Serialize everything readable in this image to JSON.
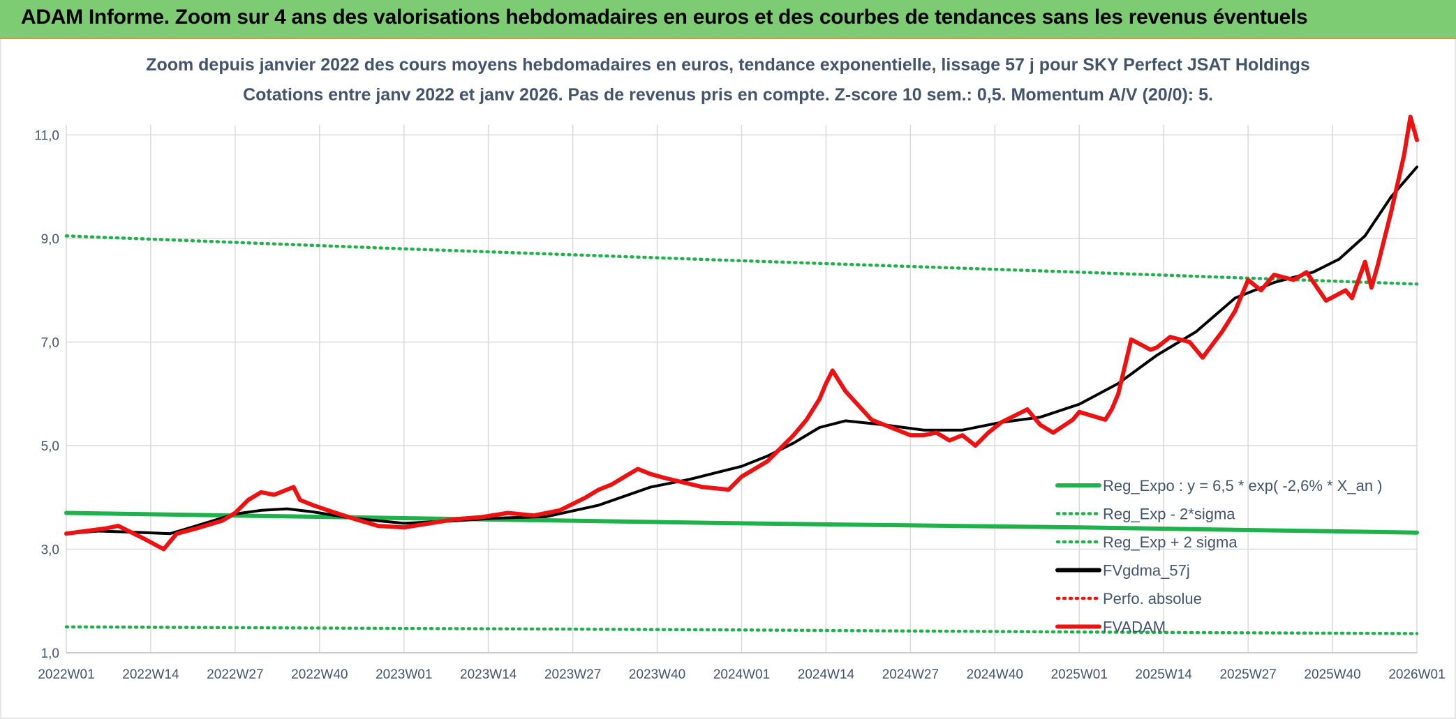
{
  "header": {
    "title": "ADAM Informe. Zoom sur 4 ans des valorisations hebdomadaires en euros et des courbes de tendances sans les revenus éventuels"
  },
  "colors": {
    "header_bg": "#7dcb72",
    "green": "#1fb14b",
    "black": "#000000",
    "red": "#ee1111",
    "grid": "#d9d9d9",
    "text": "#44546a"
  },
  "chart_data": {
    "type": "line",
    "title": "Zoom depuis janvier 2022 des cours moyens hebdomadaires en euros, tendance exponentielle, lissage 57 j pour SKY Perfect JSAT Holdings",
    "subtitle": "Cotations entre janv 2022 et janv 2026. Pas de revenus pris en compte. Z-score 10 sem.: 0,5. Momentum A/V (20/0): 5.",
    "ylim": [
      1.0,
      11.5
    ],
    "yticks": [
      "1,0",
      "3,0",
      "5,0",
      "7,0",
      "9,0",
      "11,0"
    ],
    "ytick_values": [
      1,
      3,
      5,
      7,
      9,
      11
    ],
    "xtick_labels": [
      "2022W01",
      "2022W14",
      "2022W27",
      "2022W40",
      "2023W01",
      "2023W14",
      "2023W27",
      "2023W40",
      "2024W01",
      "2024W14",
      "2024W27",
      "2024W40",
      "2025W01",
      "2025W14",
      "2025W27",
      "2025W40",
      "2026W01"
    ],
    "xtick_index": [
      0,
      13,
      26,
      39,
      52,
      65,
      78,
      91,
      104,
      117,
      130,
      143,
      156,
      169,
      182,
      195,
      208
    ],
    "x_max_index": 208,
    "legend": [
      "Reg_Expo : y = 6,5 * exp( -2,6% *  X_an )",
      "Reg_Exp - 2*sigma",
      "Reg_Exp + 2 sigma",
      "FVgdma_57j",
      "Perfo. absolue",
      "FVADAM"
    ],
    "series": [
      {
        "name": "Reg_Expo : y = 6,5 * exp( -2,6% *  X_an )",
        "style": "solid",
        "color": "#1fb14b",
        "x": [
          0,
          52,
          104,
          156,
          208
        ],
        "values": [
          3.7,
          3.6,
          3.5,
          3.42,
          3.32
        ]
      },
      {
        "name": "Reg_Exp - 2*sigma",
        "style": "dotted",
        "color": "#1fb14b",
        "x": [
          0,
          52,
          104,
          156,
          208
        ],
        "values": [
          1.5,
          1.47,
          1.44,
          1.4,
          1.37
        ]
      },
      {
        "name": "Reg_Exp + 2 sigma",
        "style": "dotted",
        "color": "#1fb14b",
        "x": [
          0,
          52,
          104,
          156,
          208
        ],
        "values": [
          9.05,
          8.8,
          8.57,
          8.35,
          8.12
        ]
      },
      {
        "name": "FVgdma_57j",
        "style": "solid",
        "color": "#000000",
        "x": [
          0,
          5,
          10,
          16,
          20,
          26,
          30,
          34,
          38,
          44,
          52,
          60,
          66,
          74,
          82,
          90,
          96,
          104,
          108,
          112,
          116,
          120,
          126,
          132,
          138,
          144,
          150,
          156,
          162,
          168,
          174,
          180,
          186,
          192,
          196,
          200,
          204,
          208
        ],
        "values": [
          3.3,
          3.35,
          3.33,
          3.3,
          3.45,
          3.68,
          3.75,
          3.78,
          3.72,
          3.6,
          3.5,
          3.55,
          3.6,
          3.63,
          3.85,
          4.2,
          4.35,
          4.6,
          4.8,
          5.05,
          5.35,
          5.48,
          5.4,
          5.3,
          5.3,
          5.45,
          5.55,
          5.8,
          6.2,
          6.75,
          7.2,
          7.85,
          8.15,
          8.35,
          8.6,
          9.05,
          9.8,
          10.38
        ]
      },
      {
        "name": "Perfo. absolue",
        "style": "dotted",
        "color": "#ee1111",
        "x": [],
        "values": []
      },
      {
        "name": "FVADAM",
        "style": "solid",
        "color": "#ee1111",
        "x": [
          0,
          3,
          6,
          8,
          12,
          15,
          17,
          20,
          24,
          26,
          28,
          30,
          32,
          35,
          36,
          38,
          41,
          44,
          48,
          52,
          56,
          60,
          64,
          68,
          72,
          76,
          80,
          82,
          84,
          86,
          88,
          90,
          92,
          94,
          98,
          102,
          104,
          108,
          112,
          114,
          116,
          117,
          118,
          120,
          124,
          128,
          130,
          132,
          134,
          136,
          138,
          140,
          142,
          144,
          148,
          150,
          152,
          155,
          156,
          160,
          161,
          162,
          164,
          167,
          168,
          170,
          173,
          175,
          178,
          180,
          182,
          184,
          186,
          189,
          191,
          194,
          197,
          198,
          200,
          201,
          202,
          204,
          206,
          207,
          208
        ],
        "values": [
          3.3,
          3.35,
          3.4,
          3.45,
          3.2,
          3.0,
          3.3,
          3.4,
          3.55,
          3.7,
          3.95,
          4.1,
          4.05,
          4.2,
          3.95,
          3.85,
          3.72,
          3.6,
          3.45,
          3.42,
          3.5,
          3.58,
          3.62,
          3.7,
          3.65,
          3.75,
          4.0,
          4.15,
          4.25,
          4.4,
          4.55,
          4.45,
          4.38,
          4.32,
          4.2,
          4.15,
          4.4,
          4.7,
          5.2,
          5.5,
          5.9,
          6.2,
          6.45,
          6.05,
          5.5,
          5.3,
          5.2,
          5.2,
          5.25,
          5.1,
          5.2,
          5.0,
          5.25,
          5.45,
          5.7,
          5.4,
          5.25,
          5.5,
          5.65,
          5.5,
          5.7,
          6.0,
          7.05,
          6.85,
          6.9,
          7.1,
          7.0,
          6.7,
          7.2,
          7.6,
          8.2,
          8.0,
          8.3,
          8.2,
          8.35,
          7.8,
          8.0,
          7.85,
          8.55,
          8.05,
          8.5,
          9.5,
          10.6,
          11.35,
          10.9
        ]
      }
    ]
  }
}
